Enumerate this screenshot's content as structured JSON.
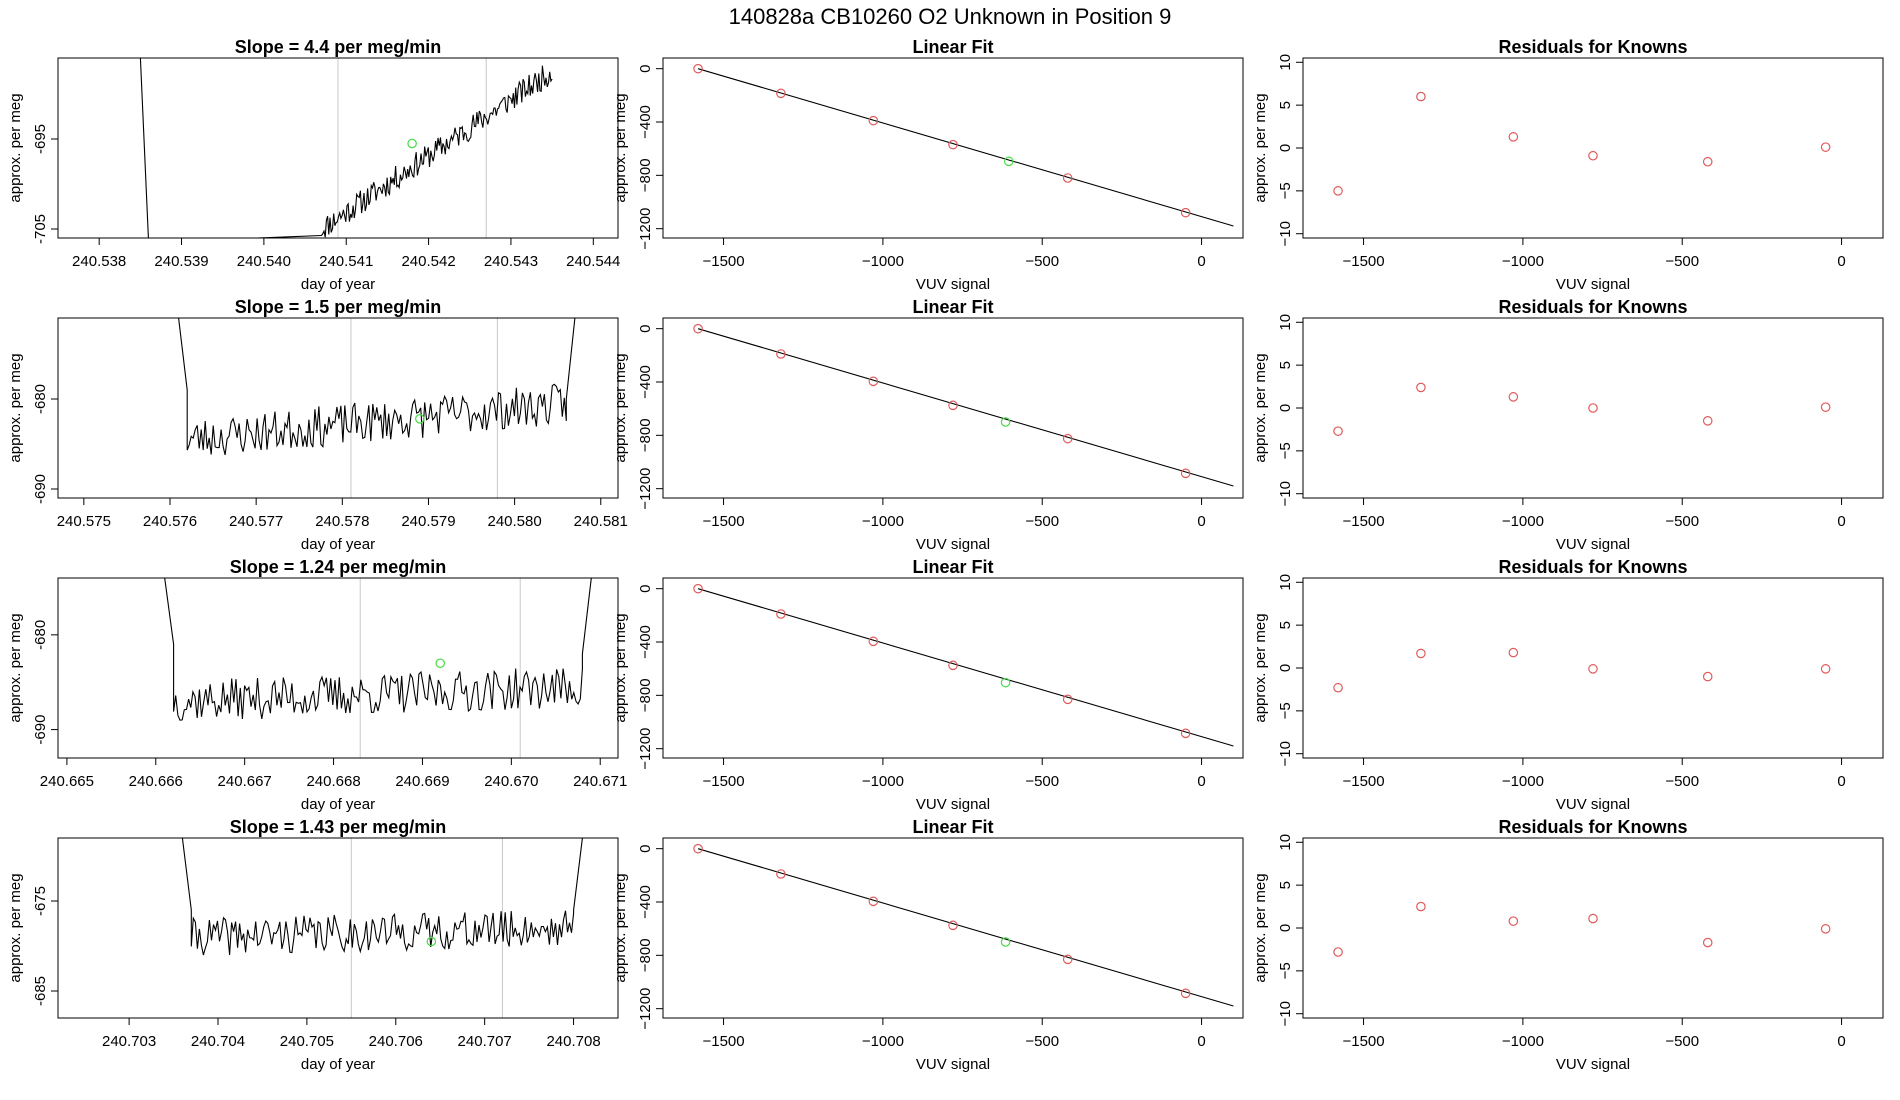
{
  "figure_title": "140828a      CB10260    O2 Unknown in Position  9",
  "colors": {
    "series": "#000000",
    "known_point": "#e05a5a",
    "unknown_point": "#44dd44",
    "marker_line": "#c8c8c8",
    "axis": "#000000"
  },
  "chart_data": [
    {
      "type": "line",
      "panel": "time-series",
      "row": 1,
      "title": "Slope =  4.4  per meg/min",
      "xlabel": "day of year",
      "ylabel": "approx. per meg",
      "xlim": [
        240.5375,
        240.5443
      ],
      "ylim": [
        -706,
        -686
      ],
      "xticks": [
        "240.538",
        "240.539",
        "240.540",
        "240.541",
        "240.542",
        "240.543",
        "240.544"
      ],
      "yticks": [
        "-695",
        "-705"
      ],
      "markers": [
        240.5409,
        240.5427
      ],
      "start": 240.5407,
      "end": 240.5435,
      "ystart": -705,
      "yend": -687.5,
      "noise": 1.4,
      "seed": 11,
      "pre": [
        [
          240.5385,
          -686
        ],
        [
          240.5386,
          -706.5
        ]
      ],
      "unknown": [
        240.5418,
        -695.5
      ]
    },
    {
      "type": "line",
      "panel": "time-series",
      "row": 2,
      "title": "Slope =  1.5  per meg/min",
      "xlabel": "day of year",
      "ylabel": "approx. per meg",
      "xlim": [
        240.5747,
        240.5812
      ],
      "ylim": [
        -691,
        -671
      ],
      "xticks": [
        "240.575",
        "240.576",
        "240.577",
        "240.578",
        "240.579",
        "240.580",
        "240.581"
      ],
      "yticks": [
        "-680",
        "-690"
      ],
      "markers": [
        240.5781,
        240.5798
      ],
      "start": 240.5762,
      "end": 240.5806,
      "ystart": -684.5,
      "yend": -680.5,
      "noise": 2.3,
      "seed": 23,
      "pre": [
        [
          240.5761,
          -671
        ],
        [
          240.5762,
          -679
        ]
      ],
      "post": [
        [
          240.5806,
          -680
        ],
        [
          240.5807,
          -671
        ]
      ],
      "unknown": [
        240.5789,
        -682.2
      ]
    },
    {
      "type": "line",
      "panel": "time-series",
      "row": 3,
      "title": "Slope =  1.24  per meg/min",
      "xlabel": "day of year",
      "ylabel": "approx. per meg",
      "xlim": [
        240.6649,
        240.6712
      ],
      "ylim": [
        -693,
        -674
      ],
      "xticks": [
        "240.665",
        "240.666",
        "240.667",
        "240.668",
        "240.669",
        "240.670",
        "240.671"
      ],
      "yticks": [
        "-680",
        "-690"
      ],
      "markers": [
        240.6683,
        240.6701
      ],
      "start": 240.6662,
      "end": 240.6708,
      "ystart": -687,
      "yend": -685.5,
      "noise": 2.2,
      "seed": 37,
      "pre": [
        [
          240.6661,
          -674
        ],
        [
          240.6662,
          -681
        ]
      ],
      "post": [
        [
          240.6708,
          -682
        ],
        [
          240.6709,
          -674
        ]
      ],
      "unknown": [
        240.6692,
        -683
      ]
    },
    {
      "type": "line",
      "panel": "time-series",
      "row": 4,
      "title": "Slope =  1.43  per meg/min",
      "xlabel": "day of year",
      "ylabel": "approx. per meg",
      "xlim": [
        240.7022,
        240.7085
      ],
      "ylim": [
        -688,
        -668
      ],
      "xticks": [
        "240.703",
        "240.704",
        "240.705",
        "240.706",
        "240.707",
        "240.708"
      ],
      "yticks": [
        "-675",
        "-685"
      ],
      "markers": [
        240.7055,
        240.7072
      ],
      "start": 240.7037,
      "end": 240.708,
      "ystart": -679,
      "yend": -678,
      "noise": 2.1,
      "seed": 41,
      "pre": [
        [
          240.7036,
          -668
        ],
        [
          240.7037,
          -676
        ]
      ],
      "post": [
        [
          240.708,
          -676
        ],
        [
          240.7081,
          -668
        ]
      ],
      "unknown": [
        240.7064,
        -679.5
      ]
    },
    {
      "type": "scatter",
      "panel": "linear-fit",
      "row": 1,
      "title": "Linear Fit",
      "xlabel": "VUV signal",
      "ylabel": "approx. per meg",
      "xlim": [
        -1690,
        130
      ],
      "ylim": [
        -1270,
        80
      ],
      "xticks": [
        -1500,
        -1000,
        -500,
        0
      ],
      "yticks": [
        0,
        -400,
        -800,
        -1200
      ],
      "fit_line": [
        [
          -1580,
          0
        ],
        [
          100,
          -1180
        ]
      ],
      "knowns": [
        [
          -1580,
          0
        ],
        [
          -1320,
          -185
        ],
        [
          -1030,
          -390
        ],
        [
          -780,
          -570
        ],
        [
          -420,
          -820
        ],
        [
          -50,
          -1080
        ]
      ],
      "unknown": [
        -605,
        -695
      ]
    },
    {
      "type": "scatter",
      "panel": "linear-fit",
      "row": 2,
      "title": "Linear Fit",
      "xlabel": "VUV signal",
      "ylabel": "approx. per meg",
      "xlim": [
        -1690,
        130
      ],
      "ylim": [
        -1270,
        80
      ],
      "xticks": [
        -1500,
        -1000,
        -500,
        0
      ],
      "yticks": [
        0,
        -400,
        -800,
        -1200
      ],
      "fit_line": [
        [
          -1580,
          0
        ],
        [
          100,
          -1180
        ]
      ],
      "knowns": [
        [
          -1580,
          0
        ],
        [
          -1320,
          -190
        ],
        [
          -1030,
          -395
        ],
        [
          -780,
          -575
        ],
        [
          -420,
          -825
        ],
        [
          -50,
          -1085
        ]
      ],
      "unknown": [
        -615,
        -700
      ]
    },
    {
      "type": "scatter",
      "panel": "linear-fit",
      "row": 3,
      "title": "Linear Fit",
      "xlabel": "VUV signal",
      "ylabel": "approx. per meg",
      "xlim": [
        -1690,
        130
      ],
      "ylim": [
        -1270,
        80
      ],
      "xticks": [
        -1500,
        -1000,
        -500,
        0
      ],
      "yticks": [
        0,
        -400,
        -800,
        -1200
      ],
      "fit_line": [
        [
          -1580,
          0
        ],
        [
          100,
          -1180
        ]
      ],
      "knowns": [
        [
          -1580,
          0
        ],
        [
          -1320,
          -190
        ],
        [
          -1030,
          -395
        ],
        [
          -780,
          -575
        ],
        [
          -420,
          -830
        ],
        [
          -50,
          -1085
        ]
      ],
      "unknown": [
        -615,
        -705
      ]
    },
    {
      "type": "scatter",
      "panel": "linear-fit",
      "row": 4,
      "title": "Linear Fit",
      "xlabel": "VUV signal",
      "ylabel": "approx. per meg",
      "xlim": [
        -1690,
        130
      ],
      "ylim": [
        -1270,
        80
      ],
      "xticks": [
        -1500,
        -1000,
        -500,
        0
      ],
      "yticks": [
        0,
        -400,
        -800,
        -1200
      ],
      "fit_line": [
        [
          -1580,
          0
        ],
        [
          100,
          -1180
        ]
      ],
      "knowns": [
        [
          -1580,
          0
        ],
        [
          -1320,
          -190
        ],
        [
          -1030,
          -395
        ],
        [
          -780,
          -575
        ],
        [
          -420,
          -830
        ],
        [
          -50,
          -1085
        ]
      ],
      "unknown": [
        -615,
        -700
      ]
    },
    {
      "type": "scatter",
      "panel": "residuals",
      "row": 1,
      "title": "Residuals for Knowns",
      "xlabel": "VUV signal",
      "ylabel": "approx. per meg",
      "xlim": [
        -1690,
        130
      ],
      "ylim": [
        -10.5,
        10.5
      ],
      "xticks": [
        -1500,
        -1000,
        -500,
        0
      ],
      "yticks": [
        10,
        5,
        0,
        -5,
        -10
      ],
      "knowns": [
        [
          -1580,
          -5
        ],
        [
          -1320,
          6
        ],
        [
          -1030,
          1.3
        ],
        [
          -780,
          -0.9
        ],
        [
          -420,
          -1.6
        ],
        [
          -50,
          0.1
        ]
      ]
    },
    {
      "type": "scatter",
      "panel": "residuals",
      "row": 2,
      "title": "Residuals for Knowns",
      "xlabel": "VUV signal",
      "ylabel": "approx. per meg",
      "xlim": [
        -1690,
        130
      ],
      "ylim": [
        -10.5,
        10.5
      ],
      "xticks": [
        -1500,
        -1000,
        -500,
        0
      ],
      "yticks": [
        10,
        5,
        0,
        -5,
        -10
      ],
      "knowns": [
        [
          -1580,
          -2.7
        ],
        [
          -1320,
          2.4
        ],
        [
          -1030,
          1.3
        ],
        [
          -780,
          0
        ],
        [
          -420,
          -1.5
        ],
        [
          -50,
          0.1
        ]
      ]
    },
    {
      "type": "scatter",
      "panel": "residuals",
      "row": 3,
      "title": "Residuals for Knowns",
      "xlabel": "VUV signal",
      "ylabel": "approx. per meg",
      "xlim": [
        -1690,
        130
      ],
      "ylim": [
        -10.5,
        10.5
      ],
      "xticks": [
        -1500,
        -1000,
        -500,
        0
      ],
      "yticks": [
        10,
        5,
        0,
        -5,
        -10
      ],
      "knowns": [
        [
          -1580,
          -2.3
        ],
        [
          -1320,
          1.7
        ],
        [
          -1030,
          1.8
        ],
        [
          -780,
          -0.1
        ],
        [
          -420,
          -1
        ],
        [
          -50,
          -0.1
        ]
      ]
    },
    {
      "type": "scatter",
      "panel": "residuals",
      "row": 4,
      "title": "Residuals for Knowns",
      "xlabel": "VUV signal",
      "ylabel": "approx. per meg",
      "xlim": [
        -1690,
        130
      ],
      "ylim": [
        -10.5,
        10.5
      ],
      "xticks": [
        -1500,
        -1000,
        -500,
        0
      ],
      "yticks": [
        10,
        5,
        0,
        -5,
        -10
      ],
      "knowns": [
        [
          -1580,
          -2.8
        ],
        [
          -1320,
          2.5
        ],
        [
          -1030,
          0.8
        ],
        [
          -780,
          1.1
        ],
        [
          -420,
          -1.7
        ],
        [
          -50,
          -0.1
        ]
      ]
    }
  ]
}
